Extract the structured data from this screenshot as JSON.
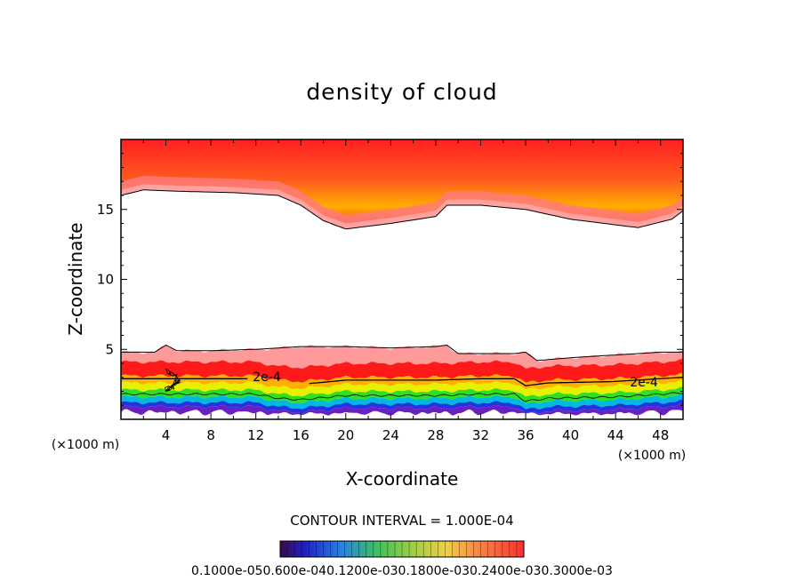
{
  "chart_data": {
    "type": "contour",
    "title": "density of cloud",
    "xlabel": "X-coordinate",
    "ylabel": "Z-coordinate",
    "x_unit": "(×1000 m)",
    "x_ticks": [
      4,
      8,
      12,
      16,
      20,
      24,
      28,
      32,
      36,
      40,
      44,
      48
    ],
    "y_ticks": [
      5,
      10,
      15
    ],
    "xlim": [
      0,
      50
    ],
    "ylim": [
      0,
      20
    ],
    "contour_interval": "CONTOUR INTERVAL = 1.000E-04",
    "contour_labels": [
      "2e-4",
      "2e-4"
    ],
    "colorbar_labels": [
      "0.1000e-05",
      "0.600e-04",
      "0.1200e-03",
      "0.1800e-03",
      "0.2400e-03",
      "0.3000e-03"
    ],
    "colorbar_text": "0.1000e-050.600e-040.1200e-030.1800e-030.2400e-030.3000e-03",
    "colors": {
      "upper_layer": [
        "#ff2020",
        "#ff5a1e",
        "#ffb000",
        "#f4e000"
      ],
      "lower_layer": [
        "#ff8a8a",
        "#ff1010",
        "#ffb000",
        "#f0f000",
        "#30e020",
        "#00b4e0",
        "#2030e0",
        "#5a20c0"
      ]
    },
    "upper_cloud": {
      "top_z": 20,
      "base_profile_x": [
        0,
        2,
        5,
        10,
        14,
        16,
        18,
        20,
        24,
        28,
        29,
        32,
        36,
        40,
        46,
        49,
        50
      ],
      "base_profile_z": [
        16,
        16.4,
        16.3,
        16.2,
        16,
        15.3,
        14.2,
        13.6,
        14.0,
        14.5,
        15.3,
        15.3,
        15.0,
        14.3,
        13.7,
        14.3,
        14.9
      ]
    },
    "lower_cloud": {
      "top_profile_x": [
        0,
        3,
        4,
        5,
        8,
        12,
        16,
        20,
        24,
        28,
        29,
        30,
        32,
        35,
        36,
        37,
        40,
        44,
        48,
        50
      ],
      "top_profile_z": [
        4.8,
        4.8,
        5.3,
        4.9,
        4.9,
        5.0,
        5.2,
        5.2,
        5.1,
        5.2,
        5.3,
        4.7,
        4.7,
        4.7,
        4.8,
        4.2,
        4.4,
        4.6,
        4.8,
        4.8
      ],
      "contour_2e4_x": [
        0,
        4,
        8,
        12,
        14,
        16,
        20,
        24,
        28,
        32,
        35,
        36,
        38,
        44,
        48,
        50
      ],
      "contour_2e4_z": [
        2.9,
        2.9,
        2.9,
        2.9,
        2.6,
        2.5,
        2.8,
        2.8,
        2.8,
        2.9,
        2.9,
        2.4,
        2.6,
        2.7,
        2.9,
        3.0
      ]
    }
  }
}
